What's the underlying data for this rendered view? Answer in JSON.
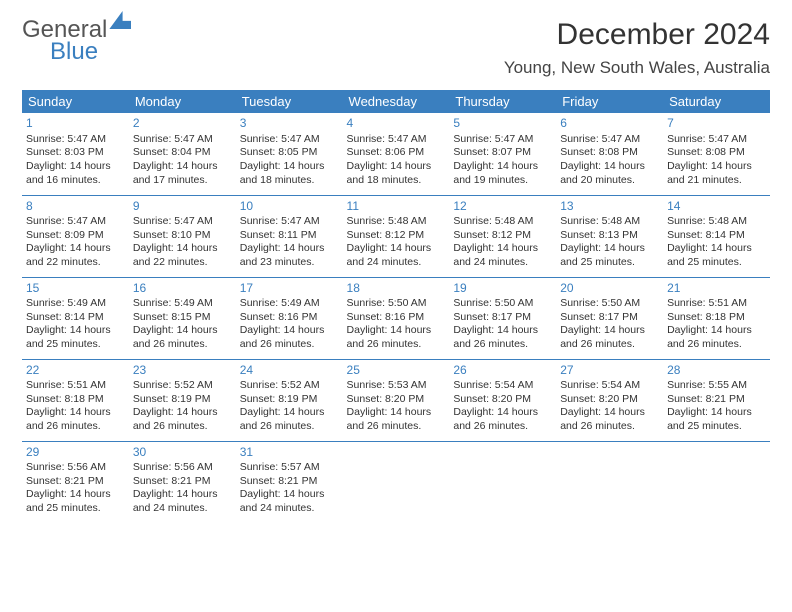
{
  "brand": {
    "word1": "General",
    "word2": "Blue"
  },
  "title": "December 2024",
  "location": "Young, New South Wales, Australia",
  "colors": {
    "accent": "#3a7fbf",
    "text": "#333333",
    "header_text": "#ffffff",
    "bg": "#ffffff"
  },
  "typography": {
    "title_fontsize": 30,
    "location_fontsize": 17,
    "day_header_fontsize": 13,
    "cell_fontsize": 10.5,
    "daynum_fontsize": 12
  },
  "day_headers": [
    "Sunday",
    "Monday",
    "Tuesday",
    "Wednesday",
    "Thursday",
    "Friday",
    "Saturday"
  ],
  "weeks": [
    [
      {
        "n": "1",
        "sr": "Sunrise: 5:47 AM",
        "ss": "Sunset: 8:03 PM",
        "dl1": "Daylight: 14 hours",
        "dl2": "and 16 minutes."
      },
      {
        "n": "2",
        "sr": "Sunrise: 5:47 AM",
        "ss": "Sunset: 8:04 PM",
        "dl1": "Daylight: 14 hours",
        "dl2": "and 17 minutes."
      },
      {
        "n": "3",
        "sr": "Sunrise: 5:47 AM",
        "ss": "Sunset: 8:05 PM",
        "dl1": "Daylight: 14 hours",
        "dl2": "and 18 minutes."
      },
      {
        "n": "4",
        "sr": "Sunrise: 5:47 AM",
        "ss": "Sunset: 8:06 PM",
        "dl1": "Daylight: 14 hours",
        "dl2": "and 18 minutes."
      },
      {
        "n": "5",
        "sr": "Sunrise: 5:47 AM",
        "ss": "Sunset: 8:07 PM",
        "dl1": "Daylight: 14 hours",
        "dl2": "and 19 minutes."
      },
      {
        "n": "6",
        "sr": "Sunrise: 5:47 AM",
        "ss": "Sunset: 8:08 PM",
        "dl1": "Daylight: 14 hours",
        "dl2": "and 20 minutes."
      },
      {
        "n": "7",
        "sr": "Sunrise: 5:47 AM",
        "ss": "Sunset: 8:08 PM",
        "dl1": "Daylight: 14 hours",
        "dl2": "and 21 minutes."
      }
    ],
    [
      {
        "n": "8",
        "sr": "Sunrise: 5:47 AM",
        "ss": "Sunset: 8:09 PM",
        "dl1": "Daylight: 14 hours",
        "dl2": "and 22 minutes."
      },
      {
        "n": "9",
        "sr": "Sunrise: 5:47 AM",
        "ss": "Sunset: 8:10 PM",
        "dl1": "Daylight: 14 hours",
        "dl2": "and 22 minutes."
      },
      {
        "n": "10",
        "sr": "Sunrise: 5:47 AM",
        "ss": "Sunset: 8:11 PM",
        "dl1": "Daylight: 14 hours",
        "dl2": "and 23 minutes."
      },
      {
        "n": "11",
        "sr": "Sunrise: 5:48 AM",
        "ss": "Sunset: 8:12 PM",
        "dl1": "Daylight: 14 hours",
        "dl2": "and 24 minutes."
      },
      {
        "n": "12",
        "sr": "Sunrise: 5:48 AM",
        "ss": "Sunset: 8:12 PM",
        "dl1": "Daylight: 14 hours",
        "dl2": "and 24 minutes."
      },
      {
        "n": "13",
        "sr": "Sunrise: 5:48 AM",
        "ss": "Sunset: 8:13 PM",
        "dl1": "Daylight: 14 hours",
        "dl2": "and 25 minutes."
      },
      {
        "n": "14",
        "sr": "Sunrise: 5:48 AM",
        "ss": "Sunset: 8:14 PM",
        "dl1": "Daylight: 14 hours",
        "dl2": "and 25 minutes."
      }
    ],
    [
      {
        "n": "15",
        "sr": "Sunrise: 5:49 AM",
        "ss": "Sunset: 8:14 PM",
        "dl1": "Daylight: 14 hours",
        "dl2": "and 25 minutes."
      },
      {
        "n": "16",
        "sr": "Sunrise: 5:49 AM",
        "ss": "Sunset: 8:15 PM",
        "dl1": "Daylight: 14 hours",
        "dl2": "and 26 minutes."
      },
      {
        "n": "17",
        "sr": "Sunrise: 5:49 AM",
        "ss": "Sunset: 8:16 PM",
        "dl1": "Daylight: 14 hours",
        "dl2": "and 26 minutes."
      },
      {
        "n": "18",
        "sr": "Sunrise: 5:50 AM",
        "ss": "Sunset: 8:16 PM",
        "dl1": "Daylight: 14 hours",
        "dl2": "and 26 minutes."
      },
      {
        "n": "19",
        "sr": "Sunrise: 5:50 AM",
        "ss": "Sunset: 8:17 PM",
        "dl1": "Daylight: 14 hours",
        "dl2": "and 26 minutes."
      },
      {
        "n": "20",
        "sr": "Sunrise: 5:50 AM",
        "ss": "Sunset: 8:17 PM",
        "dl1": "Daylight: 14 hours",
        "dl2": "and 26 minutes."
      },
      {
        "n": "21",
        "sr": "Sunrise: 5:51 AM",
        "ss": "Sunset: 8:18 PM",
        "dl1": "Daylight: 14 hours",
        "dl2": "and 26 minutes."
      }
    ],
    [
      {
        "n": "22",
        "sr": "Sunrise: 5:51 AM",
        "ss": "Sunset: 8:18 PM",
        "dl1": "Daylight: 14 hours",
        "dl2": "and 26 minutes."
      },
      {
        "n": "23",
        "sr": "Sunrise: 5:52 AM",
        "ss": "Sunset: 8:19 PM",
        "dl1": "Daylight: 14 hours",
        "dl2": "and 26 minutes."
      },
      {
        "n": "24",
        "sr": "Sunrise: 5:52 AM",
        "ss": "Sunset: 8:19 PM",
        "dl1": "Daylight: 14 hours",
        "dl2": "and 26 minutes."
      },
      {
        "n": "25",
        "sr": "Sunrise: 5:53 AM",
        "ss": "Sunset: 8:20 PM",
        "dl1": "Daylight: 14 hours",
        "dl2": "and 26 minutes."
      },
      {
        "n": "26",
        "sr": "Sunrise: 5:54 AM",
        "ss": "Sunset: 8:20 PM",
        "dl1": "Daylight: 14 hours",
        "dl2": "and 26 minutes."
      },
      {
        "n": "27",
        "sr": "Sunrise: 5:54 AM",
        "ss": "Sunset: 8:20 PM",
        "dl1": "Daylight: 14 hours",
        "dl2": "and 26 minutes."
      },
      {
        "n": "28",
        "sr": "Sunrise: 5:55 AM",
        "ss": "Sunset: 8:21 PM",
        "dl1": "Daylight: 14 hours",
        "dl2": "and 25 minutes."
      }
    ],
    [
      {
        "n": "29",
        "sr": "Sunrise: 5:56 AM",
        "ss": "Sunset: 8:21 PM",
        "dl1": "Daylight: 14 hours",
        "dl2": "and 25 minutes."
      },
      {
        "n": "30",
        "sr": "Sunrise: 5:56 AM",
        "ss": "Sunset: 8:21 PM",
        "dl1": "Daylight: 14 hours",
        "dl2": "and 24 minutes."
      },
      {
        "n": "31",
        "sr": "Sunrise: 5:57 AM",
        "ss": "Sunset: 8:21 PM",
        "dl1": "Daylight: 14 hours",
        "dl2": "and 24 minutes."
      },
      null,
      null,
      null,
      null
    ]
  ]
}
